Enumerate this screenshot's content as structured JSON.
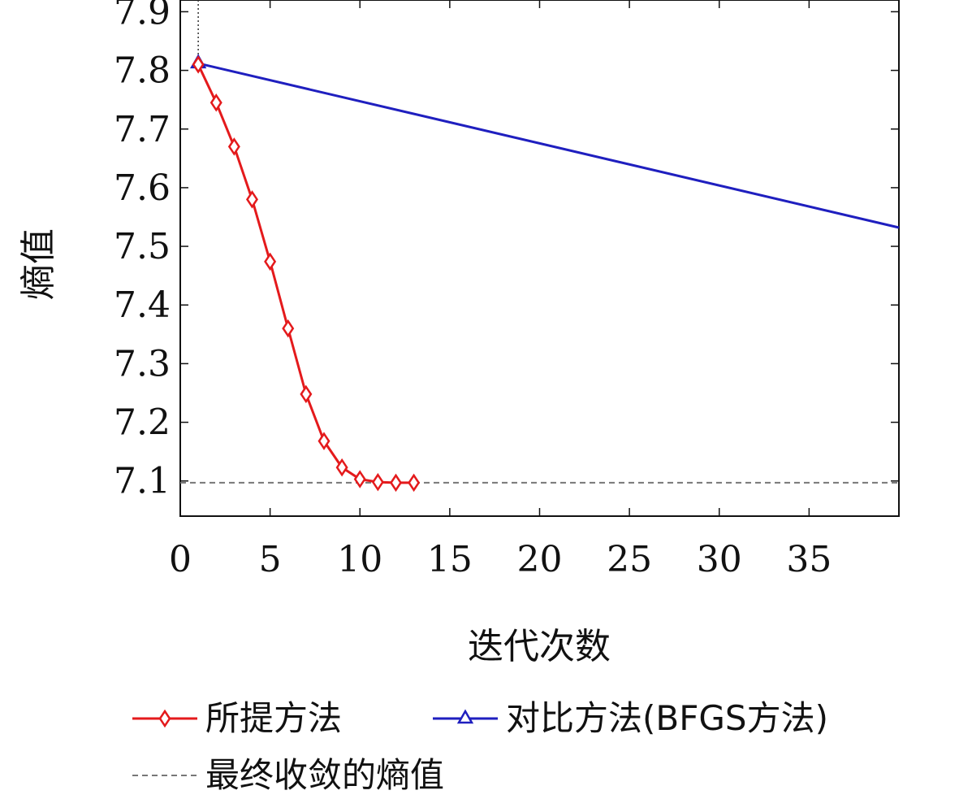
{
  "chart_data": {
    "type": "line",
    "title": "",
    "xlabel": "迭代次数",
    "ylabel": "熵值",
    "xlim": [
      0,
      40
    ],
    "ylim": [
      7.04,
      7.92
    ],
    "xticks": [
      0,
      5,
      10,
      15,
      20,
      25,
      30,
      35
    ],
    "yticks": [
      7.1,
      7.2,
      7.3,
      7.4,
      7.5,
      7.6,
      7.7,
      7.8,
      7.9
    ],
    "grid": false,
    "legend_position": "bottom",
    "series": [
      {
        "name": "所提方法",
        "color": "#e41a1c",
        "marker": "diamond",
        "x": [
          1,
          2,
          3,
          4,
          5,
          6,
          7,
          8,
          9,
          10,
          11,
          12,
          13
        ],
        "y": [
          7.81,
          7.745,
          7.67,
          7.58,
          7.474,
          7.36,
          7.248,
          7.168,
          7.123,
          7.103,
          7.098,
          7.097,
          7.097
        ]
      },
      {
        "name": "对比方法(BFGS方法)",
        "color": "#1f1fbf",
        "marker": "triangle",
        "x": [
          1,
          40
        ],
        "y": [
          7.812,
          7.532
        ]
      },
      {
        "name": "最终收敛的熵值",
        "color": "#777777",
        "marker": "none",
        "dashed": true,
        "x": [
          0,
          40
        ],
        "y": [
          7.097,
          7.097
        ]
      }
    ],
    "annotations": [
      {
        "type": "vertical-dotted-line",
        "x": 1
      }
    ]
  }
}
